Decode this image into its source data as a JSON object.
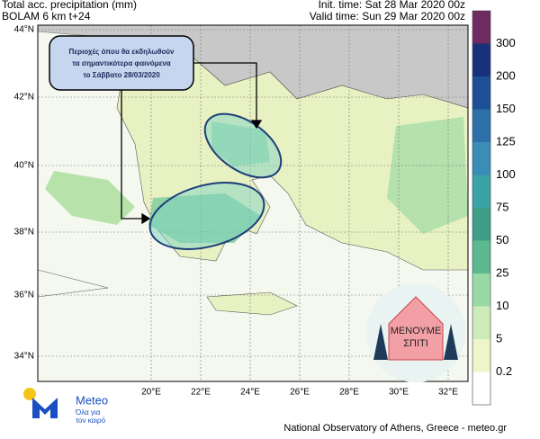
{
  "header": {
    "title": "Total acc. precipitation (mm)",
    "model": "BOLAM 6 km t+24",
    "init_time": "Init. time: Sat 28 Mar 2020 00z",
    "valid_time": "Valid time: Sun 29 Mar 2020 00z"
  },
  "callout": {
    "lines": [
      "Περιοχές όπου θα εκδηλωθούν",
      "τα σημαντικότερα φαινόμενα",
      "το Σάββατο 28/03/2020"
    ]
  },
  "map": {
    "lat_labels": [
      "44°N",
      "42°N",
      "40°N",
      "38°N",
      "36°N",
      "34°N"
    ],
    "lon_labels": [
      "20°E",
      "22°E",
      "24°E",
      "26°E",
      "28°E",
      "30°E",
      "32°E"
    ]
  },
  "colorbar": {
    "levels": [
      300,
      200,
      150,
      125,
      100,
      75,
      50,
      25,
      10,
      5,
      0.2
    ],
    "colors": [
      "#6e2b62",
      "#17317a",
      "#1d4f96",
      "#2c6fa9",
      "#3a8db6",
      "#3aa3a6",
      "#3f9e86",
      "#5bb88f",
      "#99d9a6",
      "#cdebb8",
      "#eef5c8",
      "#ffffff"
    ]
  },
  "logo": {
    "name": "Meteo",
    "tagline": [
      "Όλα για",
      "τον καιρό"
    ]
  },
  "badge": {
    "lines": [
      "ΜΕΝΟΥΜΕ",
      "ΣΠΙΤΙ"
    ]
  },
  "footer": "National Observatory of Athens, Greece - meteo.gr"
}
